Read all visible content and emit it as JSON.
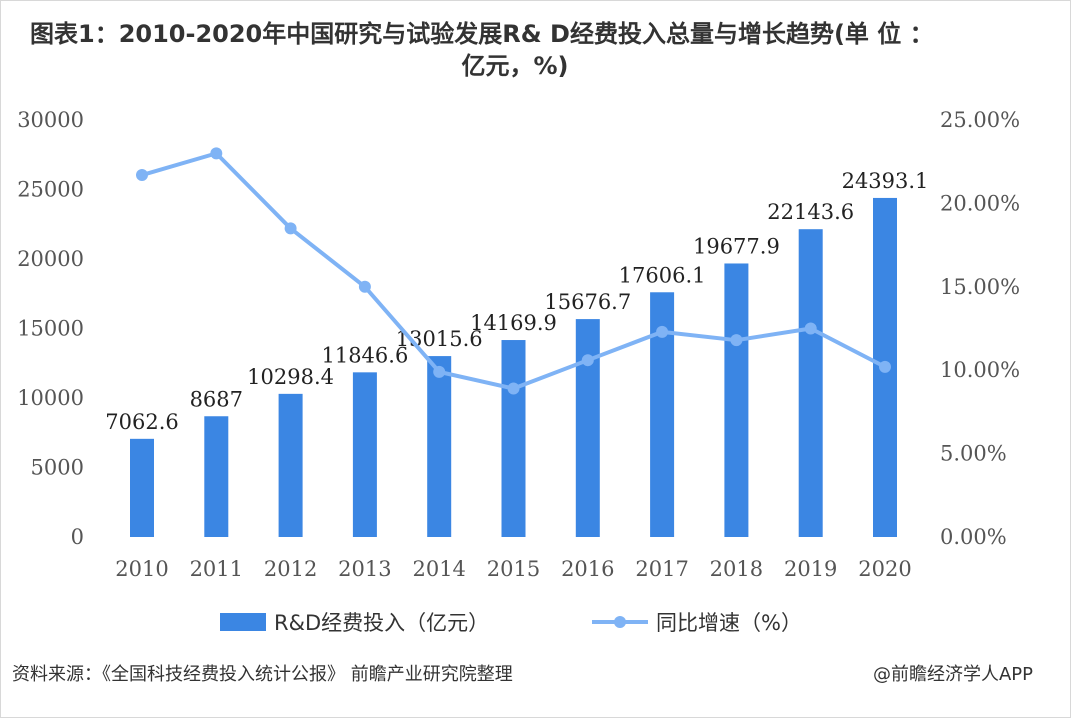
{
  "title": {
    "line1": "图表1：2010-2020年中国研究与试验发展R& D经费投入总量与增长趋势(单 位 ：",
    "line2": "亿元，%)"
  },
  "chart_data": {
    "type": "bar+line",
    "categories": [
      "2010",
      "2011",
      "2012",
      "2013",
      "2014",
      "2015",
      "2016",
      "2017",
      "2018",
      "2019",
      "2020"
    ],
    "series": [
      {
        "name": "R&D经费投入（亿元）",
        "type": "bar",
        "axis": "left",
        "values": [
          7062.6,
          8687,
          10298.4,
          11846.6,
          13015.6,
          14169.9,
          15676.7,
          17606.1,
          19677.9,
          22143.6,
          24393.1
        ],
        "labels": [
          "7062.6",
          "8687",
          "10298.4",
          "11846.6",
          "13015.6",
          "14169.9",
          "15676.7",
          "17606.1",
          "19677.9",
          "22143.6",
          "24393.1"
        ],
        "color": "#3b86e3"
      },
      {
        "name": "同比增速（%）",
        "type": "line",
        "axis": "right",
        "values": [
          21.7,
          23.0,
          18.5,
          15.0,
          9.9,
          8.9,
          10.6,
          12.3,
          11.8,
          12.5,
          10.2
        ],
        "color": "#7fb3f5"
      }
    ],
    "left_axis": {
      "min": 0,
      "max": 30000,
      "ticks": [
        "0",
        "5000",
        "10000",
        "15000",
        "20000",
        "25000",
        "30000"
      ]
    },
    "right_axis": {
      "min": 0,
      "max": 25,
      "ticks": [
        "0.00%",
        "5.00%",
        "10.00%",
        "15.00%",
        "20.00%",
        "25.00%"
      ]
    },
    "grid": false,
    "legend_position": "bottom"
  },
  "legend": {
    "bar_label": "R&D经费投入（亿元）",
    "line_label": "同比增速（%）"
  },
  "footer": {
    "source": "资料来源：《全国科技经费投入统计公报》 前瞻产业研究院整理",
    "credit": "@前瞻经济学人APP"
  }
}
